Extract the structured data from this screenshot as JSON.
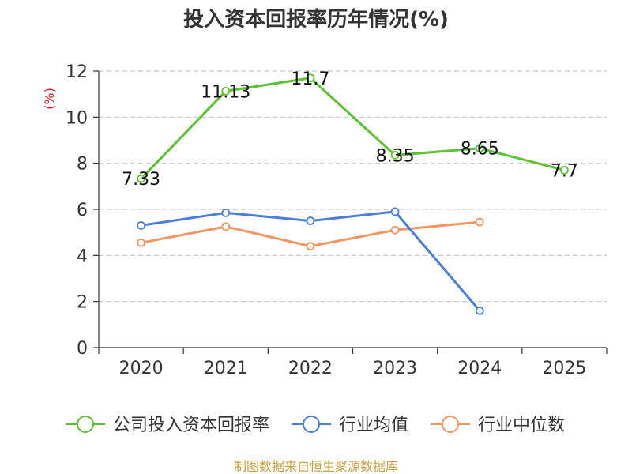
{
  "chart_data": {
    "type": "line",
    "title": "投入资本回报率历年情况(%)",
    "ylabel": "(%)",
    "xlabel": "",
    "categories": [
      "2020",
      "2021",
      "2022",
      "2023",
      "2024",
      "2025"
    ],
    "ylim": [
      0,
      12
    ],
    "yticks": [
      0,
      2,
      4,
      6,
      8,
      10,
      12
    ],
    "grid": true,
    "legend_position": "bottom",
    "series": [
      {
        "name": "公司投入资本回报率",
        "color": "#5cc234",
        "values": [
          7.33,
          11.13,
          11.7,
          8.35,
          8.65,
          7.7
        ],
        "labels": [
          "7.33",
          "11.13",
          "11.7",
          "8.35",
          "8.65",
          "7.7"
        ],
        "show_labels": true
      },
      {
        "name": "行业均值",
        "color": "#4a7fd9",
        "values": [
          5.3,
          5.85,
          5.5,
          5.9,
          1.6,
          null
        ],
        "show_labels": false
      },
      {
        "name": "行业中位数",
        "color": "#f59560",
        "values": [
          4.55,
          5.25,
          4.4,
          5.1,
          5.45,
          null
        ],
        "show_labels": false
      }
    ]
  },
  "source": "制图数据来自恒生聚源数据库"
}
